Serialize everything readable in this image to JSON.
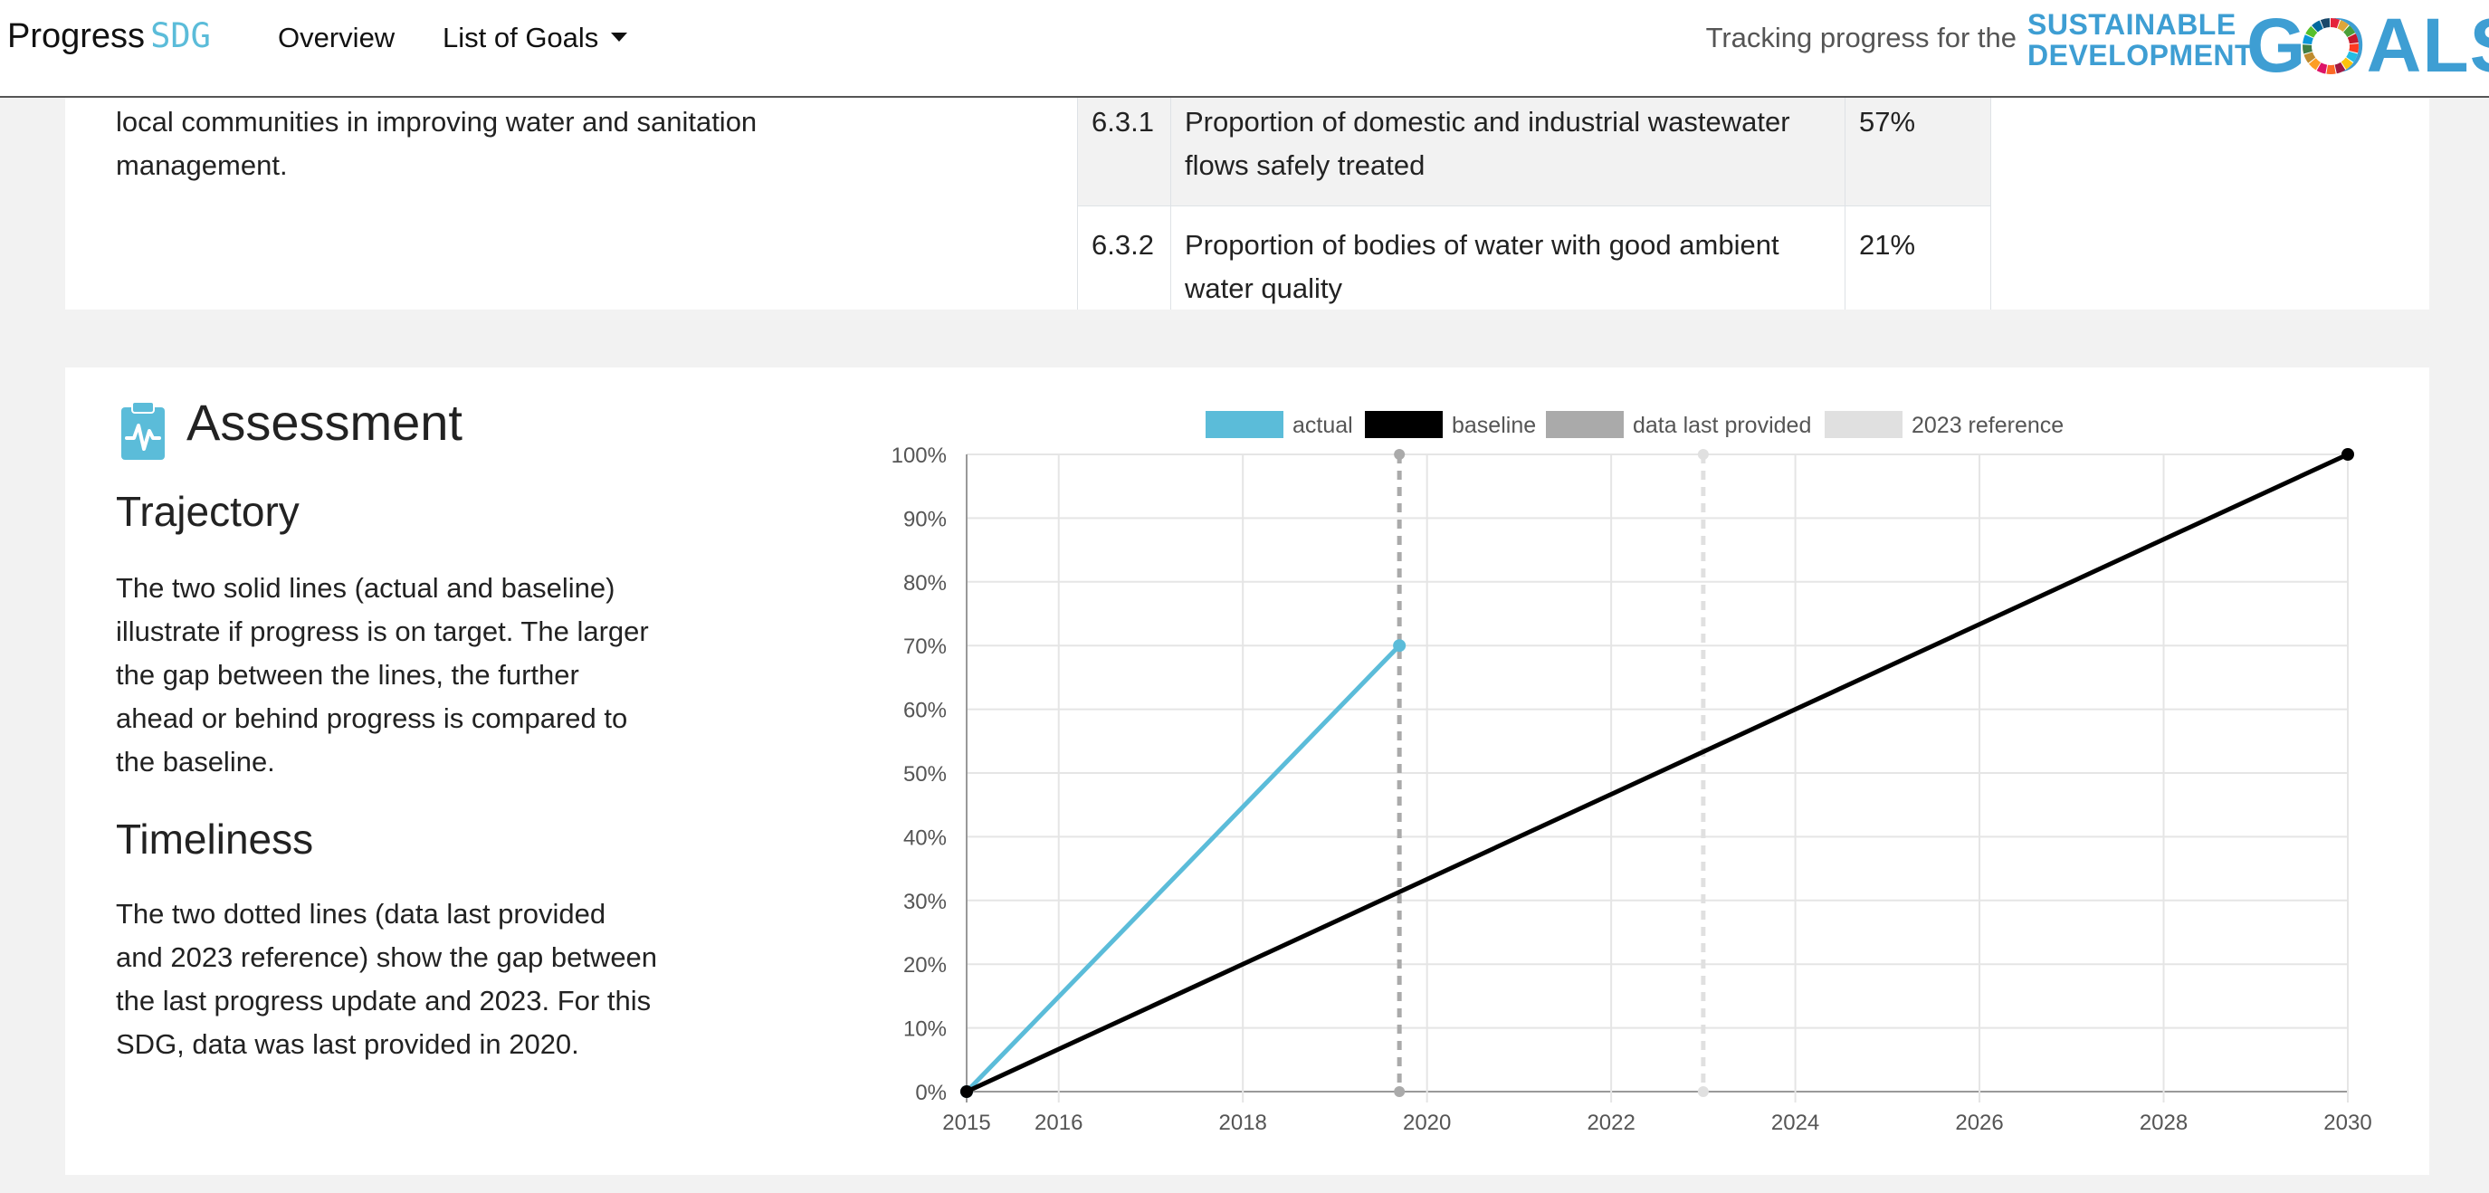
{
  "navbar": {
    "brand_main": "Progress",
    "brand_accent": "SDG",
    "overview": "Overview",
    "list_of_goals": "List of Goals",
    "tracking": "Tracking progress for the",
    "logo_line1": "SUSTAINABLE",
    "logo_line2": "DEVELOPMENT",
    "logo_goals": "GOALS"
  },
  "top_card": {
    "intro_line": "local communities in improving water and sanitation",
    "intro_line2": "management.",
    "indicators": [
      {
        "code": "6.3.1",
        "name": "Proportion of domestic and industrial wastewater flows safely treated",
        "value": "57%"
      },
      {
        "code": "6.3.2",
        "name": "Proportion of bodies of water with good ambient water quality",
        "value": "21%"
      }
    ]
  },
  "assessment": {
    "title": "Assessment",
    "trajectory_heading": "Trajectory",
    "trajectory_text": "The two solid lines (actual and baseline) illustrate if progress is on target. The larger the gap between the lines, the further ahead or behind progress is compared to the baseline.",
    "timeliness_heading": "Timeliness",
    "timeliness_text": "The two dotted lines (data last provided and 2023 reference) show the gap between the last progress update and 2023. For this SDG, data was last provided in 2020."
  },
  "colors": {
    "actual": "#5bbcd9",
    "baseline": "#000000",
    "data_last_provided": "#aaaaaa",
    "reference": "#e0e0e0",
    "brand": "#3e9ed3"
  },
  "chart_data": {
    "type": "line",
    "legend": [
      "actual",
      "baseline",
      "data last provided",
      "2023 reference"
    ],
    "x_ticks": [
      "2015",
      "2016",
      "2018",
      "2020",
      "2022",
      "2024",
      "2026",
      "2028",
      "2030"
    ],
    "y_ticks": [
      "0%",
      "10%",
      "20%",
      "30%",
      "40%",
      "50%",
      "60%",
      "70%",
      "80%",
      "90%",
      "100%"
    ],
    "xlim": [
      2015,
      2030
    ],
    "ylim": [
      0,
      100
    ],
    "series": [
      {
        "name": "actual",
        "x": [
          2015,
          2019.7
        ],
        "y": [
          0,
          70
        ]
      },
      {
        "name": "baseline",
        "x": [
          2015,
          2030
        ],
        "y": [
          0,
          100
        ]
      }
    ],
    "vlines": [
      {
        "name": "data last provided",
        "x": 2019.7
      },
      {
        "name": "2023 reference",
        "x": 2023
      }
    ]
  }
}
